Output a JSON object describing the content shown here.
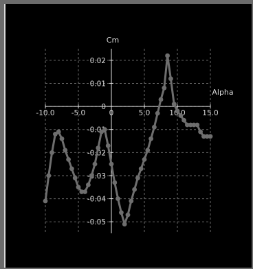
{
  "chart_data": {
    "type": "line",
    "xlabel": "Alpha",
    "ylabel": "Cm",
    "xlim": [
      -10.0,
      15.0
    ],
    "ylim": [
      -0.055,
      0.025
    ],
    "xticks": [
      -10.0,
      -5.0,
      0.0,
      5.0,
      10.0,
      15.0
    ],
    "xtick_labels": [
      "-10.0",
      "-5.0",
      "0",
      "5.0",
      "10.0",
      "15.0"
    ],
    "yticks": [
      0.02,
      0.01,
      0,
      -0.01,
      -0.02,
      -0.03,
      -0.04,
      -0.05
    ],
    "ytick_labels": [
      "0.02",
      "0.01",
      "0",
      "-0.01",
      "-0.02",
      "-0.03",
      "-0.04",
      "-0.05"
    ],
    "grid": true,
    "series": [
      {
        "color": "#6e6e6e",
        "x": [
          -10.0,
          -9.5,
          -9.0,
          -8.5,
          -8.0,
          -7.5,
          -7.0,
          -6.5,
          -6.0,
          -5.5,
          -5.0,
          -4.5,
          -4.0,
          -3.5,
          -3.0,
          -2.5,
          -2.0,
          -1.5,
          -1.0,
          -0.5,
          0.0,
          0.5,
          1.0,
          1.5,
          2.0,
          2.5,
          3.0,
          3.5,
          4.0,
          4.5,
          5.0,
          5.5,
          6.0,
          6.5,
          7.0,
          7.5,
          8.0,
          8.5,
          9.0,
          9.5,
          10.0,
          10.5,
          11.0,
          11.5,
          12.0,
          12.5,
          13.0,
          13.5,
          14.0,
          14.5,
          15.0
        ],
        "y": [
          -0.041,
          -0.03,
          -0.02,
          -0.012,
          -0.011,
          -0.014,
          -0.019,
          -0.023,
          -0.027,
          -0.031,
          -0.035,
          -0.037,
          -0.037,
          -0.034,
          -0.03,
          -0.025,
          -0.018,
          -0.011,
          -0.01,
          -0.017,
          -0.025,
          -0.033,
          -0.04,
          -0.046,
          -0.051,
          -0.047,
          -0.041,
          -0.036,
          -0.031,
          -0.027,
          -0.023,
          -0.019,
          -0.014,
          -0.009,
          -0.003,
          0.003,
          0.008,
          0.022,
          0.012,
          0.001,
          -0.002,
          -0.004,
          -0.006,
          -0.008,
          -0.008,
          -0.008,
          -0.008,
          -0.011,
          -0.013,
          -0.013,
          -0.013
        ]
      }
    ]
  }
}
